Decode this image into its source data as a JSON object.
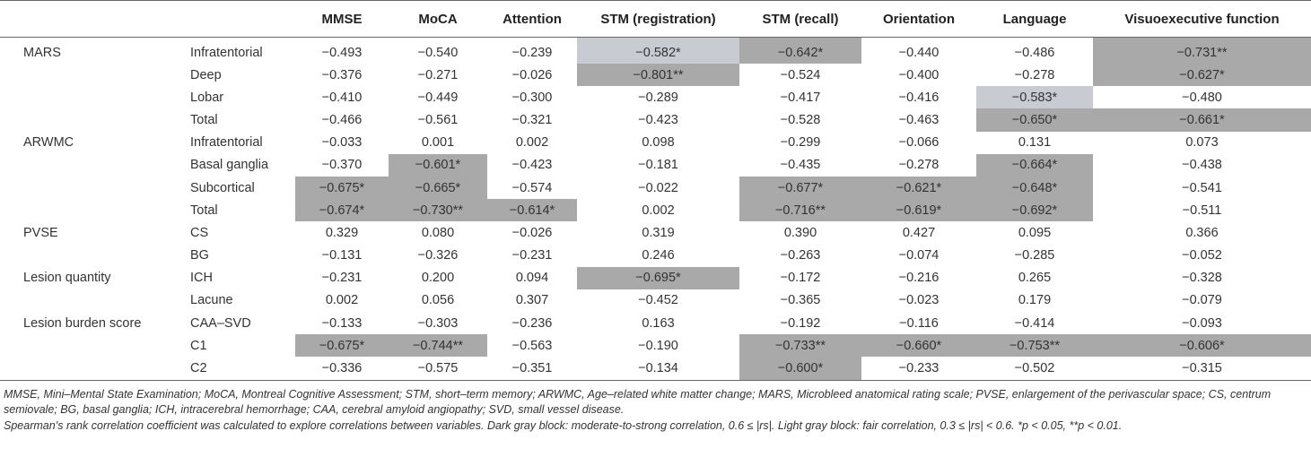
{
  "table": {
    "columns": [
      "",
      "",
      "MMSE",
      "MoCA",
      "Attention",
      "STM (registration)",
      "STM (recall)",
      "Orientation",
      "Language",
      "Visuoexecutive function"
    ],
    "rows": [
      {
        "group": "MARS",
        "sub": "Infratentorial",
        "values": [
          "−0.493",
          "−0.540",
          "−0.239",
          "−0.582*",
          "−0.642*",
          "−0.440",
          "−0.486",
          "−0.731**"
        ],
        "shade": [
          "",
          "",
          "",
          "light",
          "dark",
          "",
          "",
          "dark"
        ]
      },
      {
        "group": "",
        "sub": "Deep",
        "values": [
          "−0.376",
          "−0.271",
          "−0.026",
          "−0.801**",
          "−0.524",
          "−0.400",
          "−0.278",
          "−0.627*"
        ],
        "shade": [
          "",
          "",
          "",
          "dark",
          "",
          "",
          "",
          "dark"
        ]
      },
      {
        "group": "",
        "sub": "Lobar",
        "values": [
          "−0.410",
          "−0.449",
          "−0.300",
          "−0.289",
          "−0.417",
          "−0.416",
          "−0.583*",
          "−0.480"
        ],
        "shade": [
          "",
          "",
          "",
          "",
          "",
          "",
          "light",
          ""
        ]
      },
      {
        "group": "",
        "sub": "Total",
        "values": [
          "−0.466",
          "−0.561",
          "−0.321",
          "−0.423",
          "−0.528",
          "−0.463",
          "−0.650*",
          "−0.661*"
        ],
        "shade": [
          "",
          "",
          "",
          "",
          "",
          "",
          "dark",
          "dark"
        ]
      },
      {
        "group": "ARWMC",
        "sub": "Infratentorial",
        "values": [
          "−0.033",
          "0.001",
          "0.002",
          "0.098",
          "−0.299",
          "−0.066",
          "0.131",
          "0.073"
        ],
        "shade": [
          "",
          "",
          "",
          "",
          "",
          "",
          "",
          ""
        ]
      },
      {
        "group": "",
        "sub": "Basal ganglia",
        "values": [
          "−0.370",
          "−0.601*",
          "−0.423",
          "−0.181",
          "−0.435",
          "−0.278",
          "−0.664*",
          "−0.438"
        ],
        "shade": [
          "",
          "dark",
          "",
          "",
          "",
          "",
          "dark",
          ""
        ]
      },
      {
        "group": "",
        "sub": "Subcortical",
        "values": [
          "−0.675*",
          "−0.665*",
          "−0.574",
          "−0.022",
          "−0.677*",
          "−0.621*",
          "−0.648*",
          "−0.541"
        ],
        "shade": [
          "dark",
          "dark",
          "",
          "",
          "dark",
          "dark",
          "dark",
          ""
        ]
      },
      {
        "group": "",
        "sub": "Total",
        "values": [
          "−0.674*",
          "−0.730**",
          "−0.614*",
          "0.002",
          "−0.716**",
          "−0.619*",
          "−0.692*",
          "−0.511"
        ],
        "shade": [
          "dark",
          "dark",
          "dark",
          "",
          "dark",
          "dark",
          "dark",
          ""
        ]
      },
      {
        "group": "PVSE",
        "sub": "CS",
        "values": [
          "0.329",
          "0.080",
          "−0.026",
          "0.319",
          "0.390",
          "0.427",
          "0.095",
          "0.366"
        ],
        "shade": [
          "",
          "",
          "",
          "",
          "",
          "",
          "",
          ""
        ]
      },
      {
        "group": "",
        "sub": "BG",
        "values": [
          "−0.131",
          "−0.326",
          "−0.231",
          "0.246",
          "−0.263",
          "−0.074",
          "−0.285",
          "−0.052"
        ],
        "shade": [
          "",
          "",
          "",
          "",
          "",
          "",
          "",
          ""
        ]
      },
      {
        "group": "Lesion quantity",
        "sub": "ICH",
        "values": [
          "−0.231",
          "0.200",
          "0.094",
          "−0.695*",
          "−0.172",
          "−0.216",
          "0.265",
          "−0.328"
        ],
        "shade": [
          "",
          "",
          "",
          "dark",
          "",
          "",
          "",
          ""
        ]
      },
      {
        "group": "",
        "sub": "Lacune",
        "values": [
          "0.002",
          "0.056",
          "0.307",
          "−0.452",
          "−0.365",
          "−0.023",
          "0.179",
          "−0.079"
        ],
        "shade": [
          "",
          "",
          "",
          "",
          "",
          "",
          "",
          ""
        ]
      },
      {
        "group": "Lesion burden score",
        "sub": "CAA–SVD",
        "values": [
          "−0.133",
          "−0.303",
          "−0.236",
          "0.163",
          "−0.192",
          "−0.116",
          "−0.414",
          "−0.093"
        ],
        "shade": [
          "",
          "",
          "",
          "",
          "",
          "",
          "",
          ""
        ]
      },
      {
        "group": "",
        "sub": "C1",
        "values": [
          "−0.675*",
          "−0.744**",
          "−0.563",
          "−0.190",
          "−0.733**",
          "−0.660*",
          "−0.753**",
          "−0.606*"
        ],
        "shade": [
          "dark",
          "dark",
          "",
          "",
          "dark",
          "dark",
          "dark",
          "dark"
        ]
      },
      {
        "group": "",
        "sub": "C2",
        "values": [
          "−0.336",
          "−0.575",
          "−0.351",
          "−0.134",
          "−0.600*",
          "−0.233",
          "−0.502",
          "−0.315"
        ],
        "shade": [
          "",
          "",
          "",
          "",
          "dark",
          "",
          "",
          ""
        ]
      }
    ]
  },
  "notes": {
    "abbreviations": "MMSE, Mini–Mental State Examination; MoCA, Montreal Cognitive Assessment; STM, short–term memory; ARWMC, Age–related white matter change; MARS, Microbleed anatomical rating scale; PVSE, enlargement of the perivascular space; CS, centrum semiovale; BG, basal ganglia; ICH, intracerebral hemorrhage; CAA, cerebral amyloid angiopathy; SVD, small vessel disease.",
    "method": "Spearman’s rank correlation coefficient was calculated to explore correlations between variables. Dark gray block: moderate-to-strong correlation, 0.6 ≤ |rs|. Light gray block: fair correlation, 0.3 ≤ |rs| < 0.6. *p < 0.05, **p < 0.01."
  }
}
